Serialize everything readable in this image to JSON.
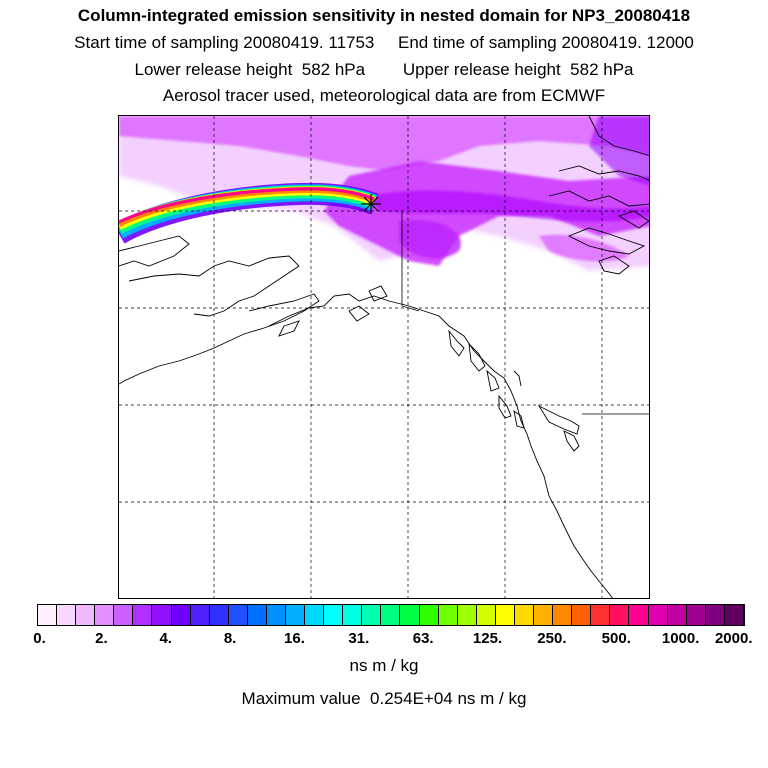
{
  "titles": {
    "line1": "Column-integrated emission sensitivity in nested domain for NP3_20080418",
    "line2": "Start time of sampling 20080419. 11753     End time of sampling 20080419. 12000",
    "line3": "Lower release height  582 hPa        Upper release height  582 hPa",
    "line4": "Aerosol tracer used, meteorological data are from ECMWF"
  },
  "colorbar": {
    "colors": [
      "#fff0ff",
      "#f8d8ff",
      "#f0b8ff",
      "#e090ff",
      "#cc60ff",
      "#b030ff",
      "#9010ff",
      "#7000ff",
      "#5020ff",
      "#3030ff",
      "#2050ff",
      "#0070ff",
      "#0090ff",
      "#00b0ff",
      "#00d8ff",
      "#00ffff",
      "#00ffe0",
      "#00ffb0",
      "#00ff80",
      "#00ff40",
      "#30ff00",
      "#70ff00",
      "#a0ff00",
      "#d0ff00",
      "#ffff00",
      "#ffd800",
      "#ffb000",
      "#ff8800",
      "#ff6000",
      "#ff3030",
      "#ff1060",
      "#ff0090",
      "#e000b0",
      "#c000a0",
      "#a00090",
      "#800080",
      "#600060"
    ],
    "tick_labels": [
      "0.",
      "2.",
      "4.",
      "8.",
      "16.",
      "31.",
      "63.",
      "125.",
      "250.",
      "500.",
      "1000.",
      "2000."
    ],
    "unit": "ns m / kg"
  },
  "max_value_text": "Maximum value  0.254E+04 ns m / kg",
  "map": {
    "receptor_marker": "asterisk",
    "plume_color": "#cc00ff"
  }
}
